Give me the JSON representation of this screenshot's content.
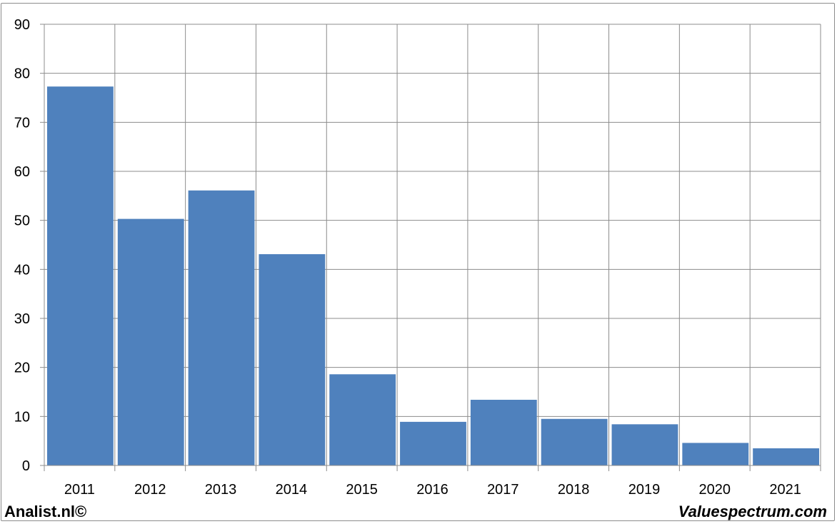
{
  "chart_data": {
    "type": "bar",
    "categories": [
      "2011",
      "2012",
      "2013",
      "2014",
      "2015",
      "2016",
      "2017",
      "2018",
      "2019",
      "2020",
      "2021"
    ],
    "values": [
      77.3,
      50.3,
      56.1,
      43.1,
      18.6,
      8.9,
      13.4,
      9.5,
      8.4,
      4.6,
      3.5
    ],
    "ylim": [
      0,
      90
    ],
    "yticks": [
      "0",
      "10",
      "20",
      "30",
      "40",
      "50",
      "60",
      "70",
      "80",
      "90"
    ],
    "grid": true,
    "bar_color": "#4f81bd",
    "grid_color": "#8c8c8c",
    "title": "",
    "xlabel": "",
    "ylabel": ""
  },
  "footer": {
    "left": "Analist.nl©",
    "right": "Valuespectrum.com"
  }
}
